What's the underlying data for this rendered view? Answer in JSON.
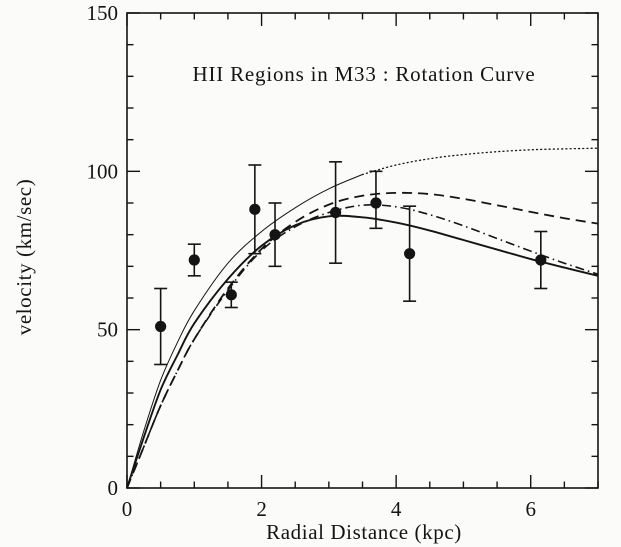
{
  "page": {
    "background": "#fbfbfa",
    "ink": "#141414"
  },
  "chart_data": {
    "type": "line",
    "title": "HII Regions in M33 : Rotation Curve",
    "xlabel": "Radial Distance (kpc)",
    "ylabel": "velocity (km/sec)",
    "xlim": [
      0,
      7
    ],
    "ylim": [
      0,
      150
    ],
    "x_major_ticks": [
      0,
      2,
      4,
      6
    ],
    "x_minor_step": 0.5,
    "y_major_ticks": [
      0,
      50,
      100,
      150
    ],
    "y_minor_step": 10,
    "grid": false,
    "legend_position": "none",
    "frame": "full-box",
    "series": [
      {
        "name": "rising-model-curve-thin-dotted",
        "style": "thin-then-dotted",
        "dotted_from_x": 3.5,
        "x": [
          0,
          0.25,
          0.5,
          0.75,
          1,
          1.5,
          2,
          2.5,
          3,
          3.5,
          4,
          4.5,
          5,
          5.5,
          6,
          6.5,
          7
        ],
        "v": [
          0,
          18,
          34,
          46,
          56,
          71,
          81,
          88.5,
          94.5,
          99,
          102,
          104,
          105.3,
          106.2,
          106.8,
          107.1,
          107.3
        ]
      },
      {
        "name": "declining-model-curve-dashed",
        "style": "dashed",
        "x": [
          0,
          0.25,
          0.5,
          0.75,
          1,
          1.5,
          2,
          2.5,
          3,
          3.5,
          4,
          4.5,
          5,
          5.5,
          6,
          6.5,
          7
        ],
        "v": [
          0,
          13,
          26,
          37,
          47,
          63,
          75.5,
          84,
          89.5,
          92.3,
          93.2,
          92.8,
          91.3,
          89.3,
          87.2,
          85.2,
          83.5
        ]
      },
      {
        "name": "declining-model-curve-dashdot",
        "style": "dashdot",
        "x": [
          0,
          0.25,
          0.5,
          0.75,
          1,
          1.5,
          2,
          2.5,
          3,
          3.5,
          4,
          4.5,
          5,
          5.5,
          6,
          6.5,
          7
        ],
        "v": [
          0,
          13,
          26,
          37,
          47,
          62.5,
          75,
          82.5,
          87,
          89.3,
          88.8,
          86.3,
          82.8,
          78.8,
          74.8,
          71,
          67.5
        ]
      },
      {
        "name": "best-fit-model-curve-solid",
        "style": "solid",
        "x": [
          0,
          0.25,
          0.5,
          0.75,
          1,
          1.5,
          2,
          2.5,
          3,
          3.5,
          4,
          4.5,
          5,
          5.5,
          6,
          6.5,
          7
        ],
        "v": [
          0,
          16,
          31,
          42,
          52,
          66,
          76.5,
          83,
          85.8,
          85.5,
          83.8,
          81.3,
          78.3,
          75.3,
          72.3,
          69.6,
          67
        ]
      }
    ],
    "points": {
      "name": "hii-region-measurements",
      "marker": "filled-circle",
      "x": [
        0.5,
        1.0,
        1.55,
        1.9,
        2.2,
        3.1,
        3.7,
        4.2,
        6.15
      ],
      "v": [
        51,
        72,
        61,
        88,
        80,
        87,
        90,
        74,
        72
      ],
      "err_up": [
        12,
        5,
        4,
        14,
        10,
        16,
        10,
        15,
        9
      ],
      "err_down": [
        12,
        5,
        4,
        14,
        10,
        16,
        8,
        15,
        9
      ]
    }
  }
}
